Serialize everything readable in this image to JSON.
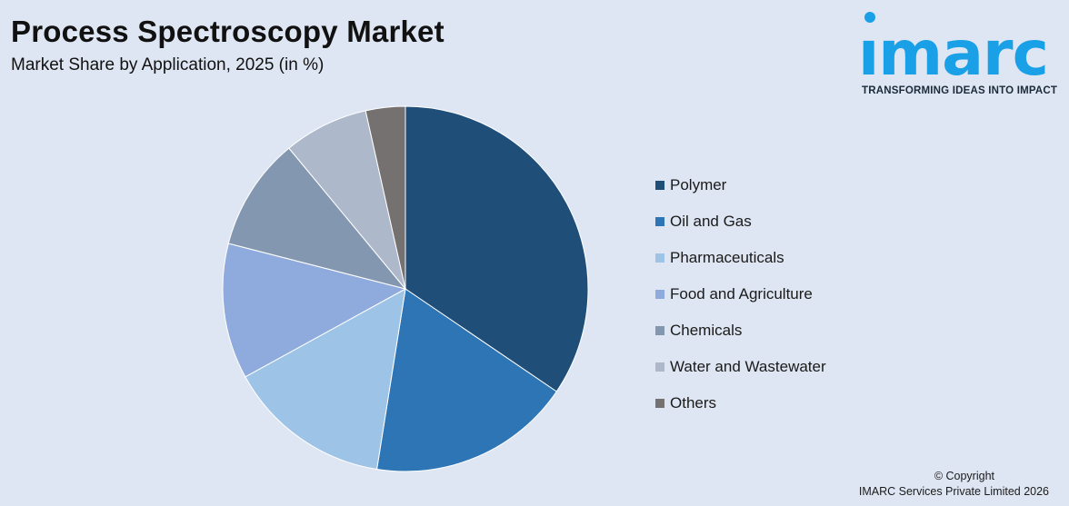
{
  "header": {
    "title": "Process Spectroscopy Market",
    "subtitle": "Market Share by Application, 2025 (in %)"
  },
  "logo": {
    "word": "ımarc",
    "tagline": "TRANSFORMING IDEAS INTO IMPACT",
    "color": "#1aa0e6"
  },
  "chart_data": {
    "type": "pie",
    "title": "Process Spectroscopy Market",
    "subtitle": "Market Share by Application, 2025 (in %)",
    "start_angle_deg": 0,
    "direction": "clockwise",
    "legend_position": "right",
    "categories": [
      "Polymer",
      "Oil and Gas",
      "Pharmaceuticals",
      "Food and Agriculture",
      "Chemicals",
      "Water and Wastewater",
      "Others"
    ],
    "values": [
      34.5,
      18.0,
      14.5,
      12.0,
      10.0,
      7.5,
      3.5
    ],
    "colors": [
      "#1f4e79",
      "#2e75b6",
      "#9dc3e6",
      "#8faadc",
      "#8497b0",
      "#adb9ca",
      "#767171"
    ]
  },
  "footer": {
    "copyright_line1": "© Copyright",
    "copyright_line2": "IMARC Services Private Limited 2026"
  }
}
